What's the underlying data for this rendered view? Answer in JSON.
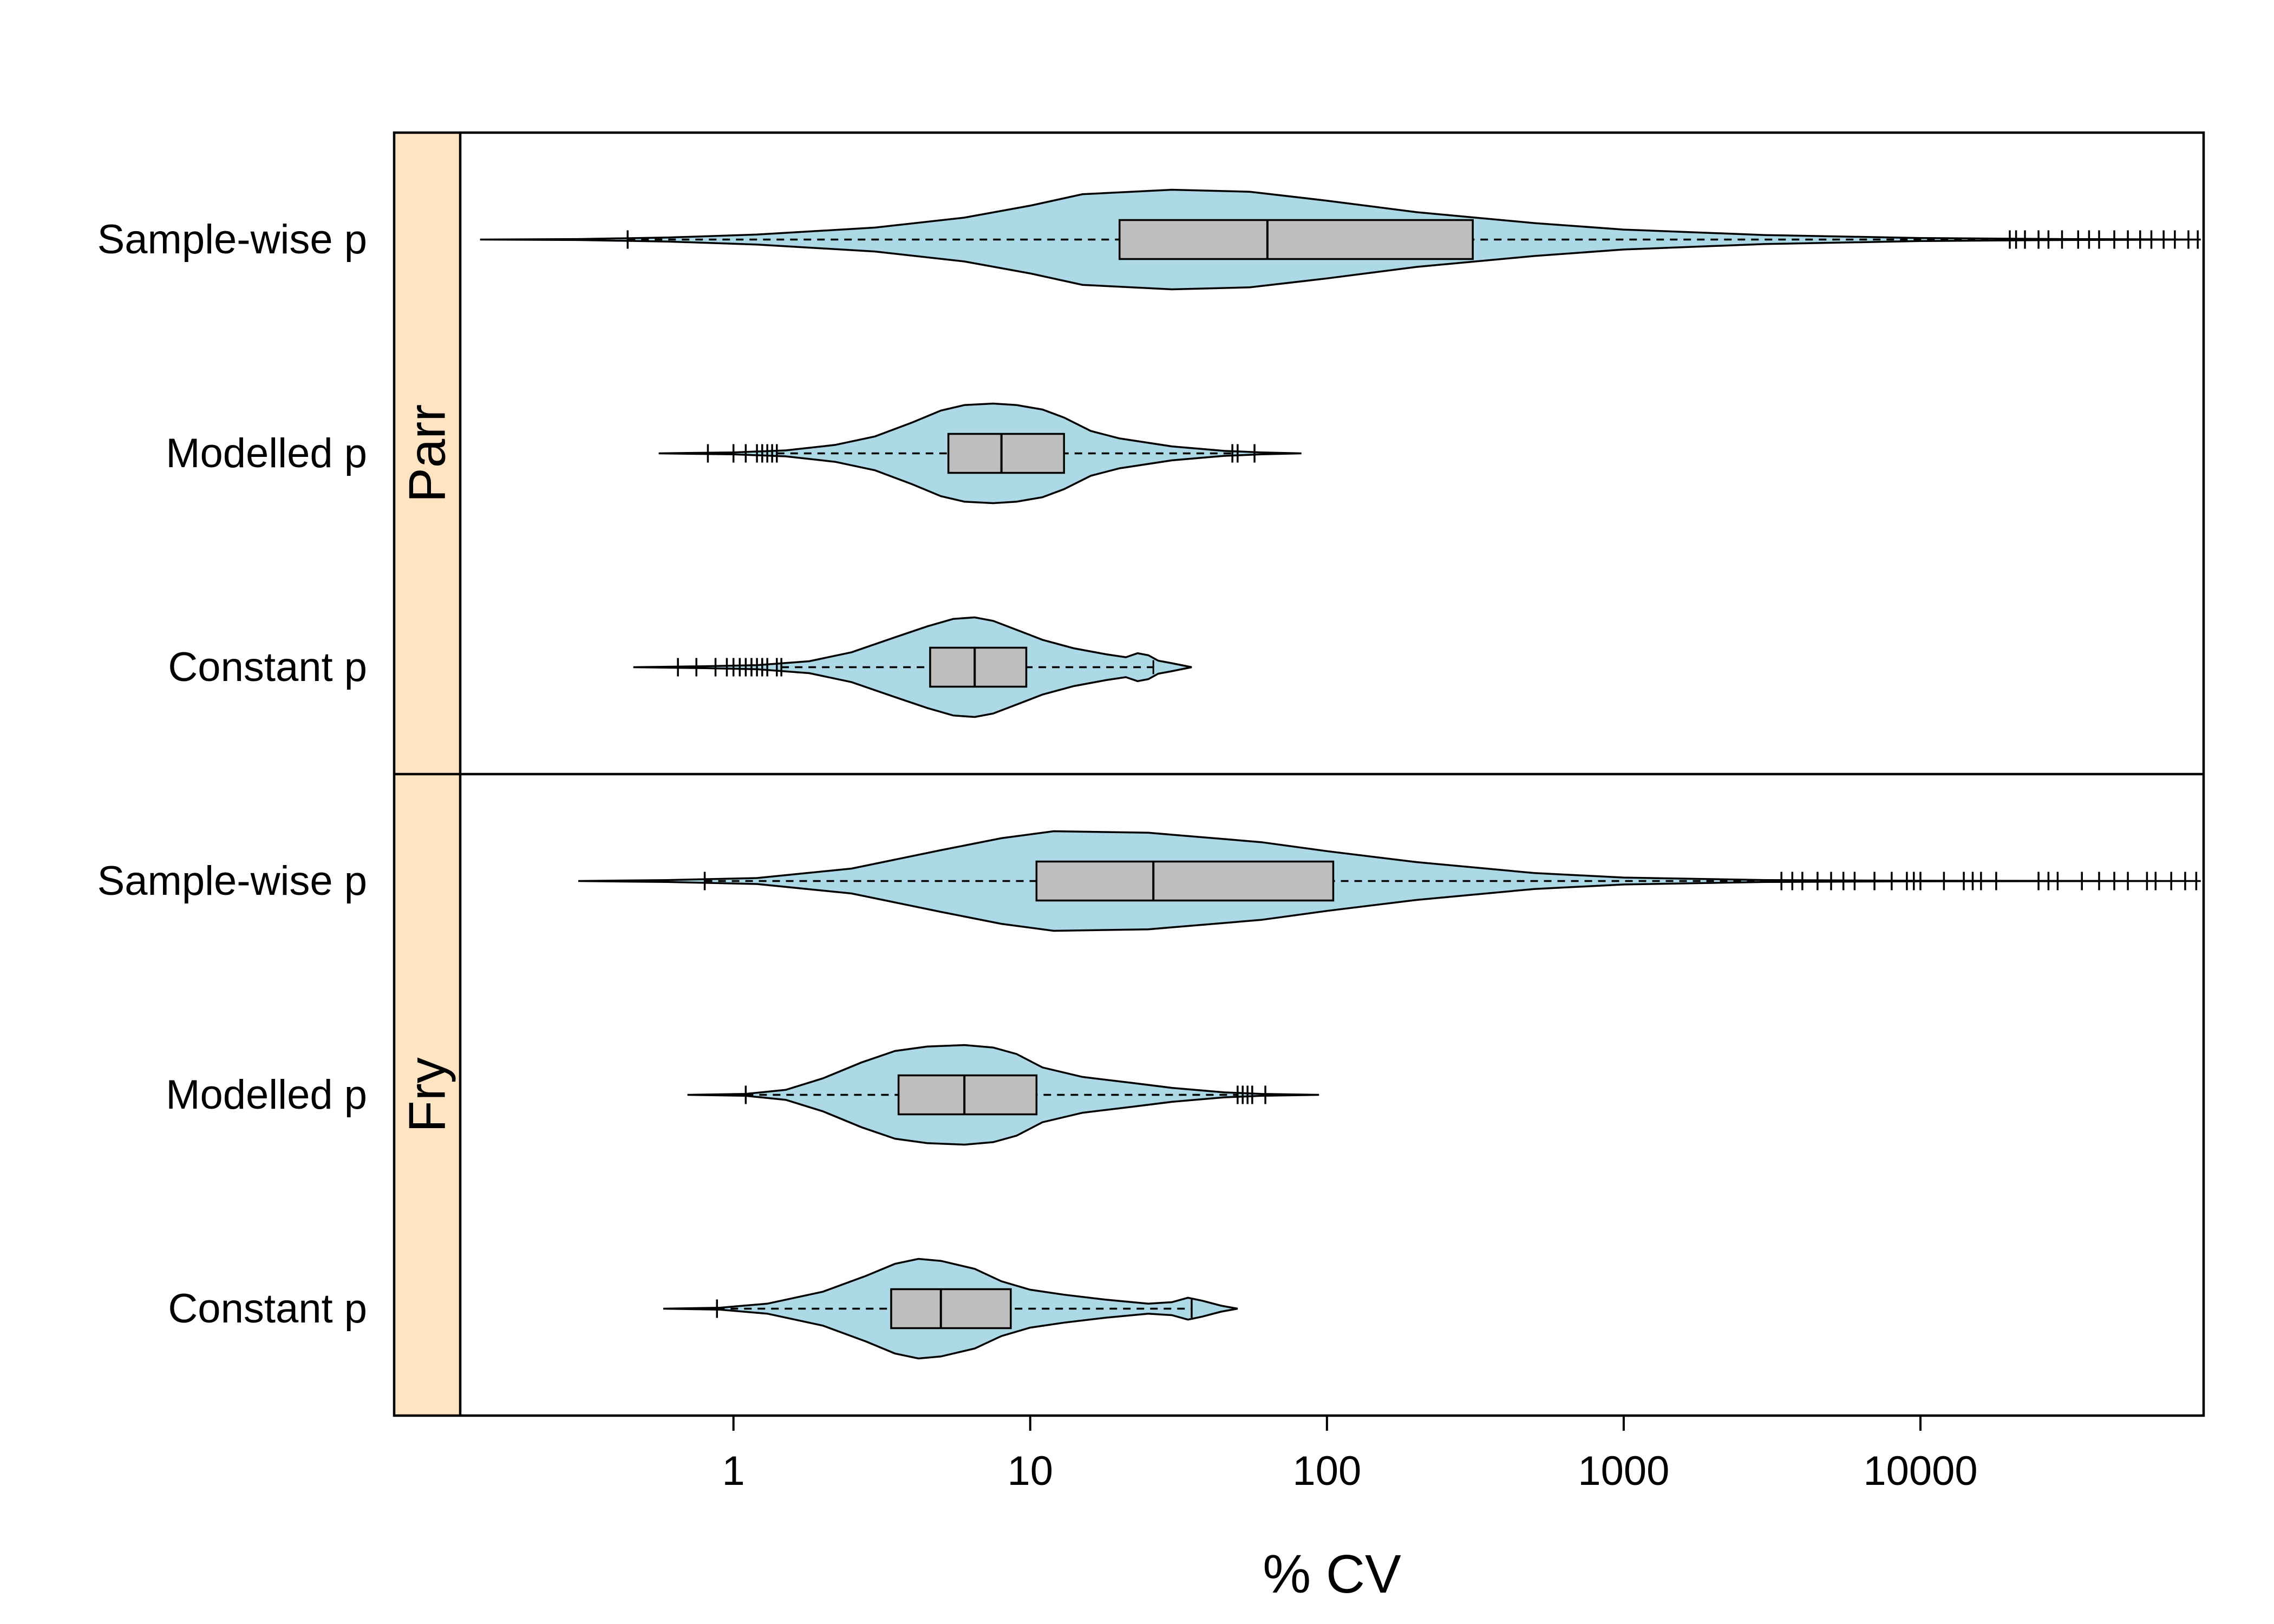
{
  "chart_data": {
    "type": "violin",
    "xlabel": "% CV",
    "x_scale": "log",
    "xlim": [
      0.12,
      90000
    ],
    "xticks": [
      1,
      10,
      100,
      1000,
      10000
    ],
    "xtick_labels": [
      "1",
      "10",
      "100",
      "1000",
      "10000"
    ],
    "categories": [
      "Sample-wise p",
      "Modelled p",
      "Constant p"
    ],
    "colors": {
      "violin_fill": "#add8e6",
      "box_fill": "#bebebe",
      "strip_fill": "#ffe4c4",
      "line": "#000000"
    },
    "panels": [
      {
        "name": "Parr",
        "groups": [
          {
            "category": "Sample-wise p",
            "whisker": [
              0.44,
              20000
            ],
            "box": [
              20,
              63,
              310
            ],
            "range": [
              0.14,
              88000
            ],
            "outliers": [
              0.44,
              20000,
              21000,
              22500,
              25000,
              27000,
              30000,
              34000,
              37000,
              40000,
              45000,
              50000,
              55000,
              60000,
              66000,
              72000,
              80000,
              86000
            ],
            "density": [
              [
                0.14,
                0.0
              ],
              [
                0.3,
                0.01
              ],
              [
                0.6,
                0.04
              ],
              [
                1.2,
                0.1
              ],
              [
                3,
                0.24
              ],
              [
                6,
                0.44
              ],
              [
                10,
                0.68
              ],
              [
                15,
                0.91
              ],
              [
                30,
                1.0
              ],
              [
                55,
                0.96
              ],
              [
                100,
                0.78
              ],
              [
                200,
                0.55
              ],
              [
                500,
                0.33
              ],
              [
                1000,
                0.2
              ],
              [
                3000,
                0.09
              ],
              [
                10000,
                0.03
              ],
              [
                30000,
                0.01
              ],
              [
                88000,
                0.0
              ]
            ]
          },
          {
            "category": "Modelled p",
            "whisker": [
              1.4,
              48
            ],
            "box": [
              5.3,
              8,
              13
            ],
            "range": [
              0.56,
              82
            ],
            "outliers": [
              0.82,
              1.0,
              1.1,
              1.2,
              1.25,
              1.3,
              1.35,
              1.4,
              48,
              50,
              57
            ],
            "density": [
              [
                0.56,
                0.0
              ],
              [
                1.0,
                0.02
              ],
              [
                1.5,
                0.06
              ],
              [
                2.2,
                0.17
              ],
              [
                3,
                0.34
              ],
              [
                4,
                0.62
              ],
              [
                5,
                0.86
              ],
              [
                6,
                0.97
              ],
              [
                7.5,
                1.0
              ],
              [
                9,
                0.97
              ],
              [
                11,
                0.88
              ],
              [
                13,
                0.72
              ],
              [
                16,
                0.45
              ],
              [
                20,
                0.3
              ],
              [
                30,
                0.14
              ],
              [
                45,
                0.05
              ],
              [
                60,
                0.02
              ],
              [
                82,
                0.0
              ]
            ]
          },
          {
            "category": "Constant p",
            "whisker": [
              1.45,
              26
            ],
            "box": [
              4.6,
              6.5,
              9.7
            ],
            "range": [
              0.46,
              35
            ],
            "outliers": [
              0.65,
              0.75,
              0.87,
              0.95,
              1.0,
              1.05,
              1.1,
              1.15,
              1.2,
              1.25,
              1.3,
              1.4,
              1.45
            ],
            "density": [
              [
                0.46,
                0.0
              ],
              [
                0.8,
                0.02
              ],
              [
                1.2,
                0.04
              ],
              [
                1.8,
                0.12
              ],
              [
                2.5,
                0.3
              ],
              [
                3.5,
                0.6
              ],
              [
                4.5,
                0.82
              ],
              [
                5.5,
                0.97
              ],
              [
                6.5,
                1.0
              ],
              [
                7.5,
                0.93
              ],
              [
                9,
                0.75
              ],
              [
                11,
                0.55
              ],
              [
                14,
                0.38
              ],
              [
                18,
                0.26
              ],
              [
                21,
                0.2
              ],
              [
                23,
                0.28
              ],
              [
                25,
                0.24
              ],
              [
                27,
                0.13
              ],
              [
                30,
                0.08
              ],
              [
                35,
                0.0
              ]
            ]
          }
        ]
      },
      {
        "name": "Fry",
        "groups": [
          {
            "category": "Sample-wise p",
            "whisker": [
              0.8,
              3400
            ],
            "box": [
              10.5,
              26,
              105
            ],
            "range": [
              0.3,
              88000
            ],
            "outliers": [
              0.8,
              3400,
              3700,
              4000,
              4500,
              5000,
              5500,
              6000,
              7000,
              8000,
              9000,
              9500,
              10000,
              12000,
              14000,
              15000,
              16000,
              18000,
              25000,
              27000,
              29000,
              35000,
              40000,
              45000,
              50000,
              58000,
              62000,
              70000,
              78000,
              85000
            ],
            "density": [
              [
                0.3,
                0.0
              ],
              [
                0.6,
                0.02
              ],
              [
                1.2,
                0.06
              ],
              [
                2.5,
                0.25
              ],
              [
                5,
                0.62
              ],
              [
                8,
                0.86
              ],
              [
                12,
                1.0
              ],
              [
                25,
                0.97
              ],
              [
                60,
                0.78
              ],
              [
                100,
                0.6
              ],
              [
                200,
                0.38
              ],
              [
                500,
                0.16
              ],
              [
                1000,
                0.07
              ],
              [
                3000,
                0.02
              ],
              [
                10000,
                0.005
              ],
              [
                88000,
                0.0
              ]
            ]
          },
          {
            "category": "Modelled p",
            "whisker": [
              1.1,
              50
            ],
            "box": [
              3.6,
              6,
              10.5
            ],
            "range": [
              0.7,
              94
            ],
            "outliers": [
              1.1,
              50,
              52,
              54,
              56,
              62
            ],
            "density": [
              [
                0.7,
                0.0
              ],
              [
                1.1,
                0.02
              ],
              [
                1.5,
                0.1
              ],
              [
                2,
                0.33
              ],
              [
                2.7,
                0.65
              ],
              [
                3.5,
                0.88
              ],
              [
                4.5,
                0.97
              ],
              [
                6,
                1.0
              ],
              [
                7.5,
                0.95
              ],
              [
                9,
                0.82
              ],
              [
                11,
                0.55
              ],
              [
                15,
                0.36
              ],
              [
                22,
                0.24
              ],
              [
                30,
                0.14
              ],
              [
                45,
                0.05
              ],
              [
                60,
                0.02
              ],
              [
                94,
                0.0
              ]
            ]
          },
          {
            "category": "Constant p",
            "whisker": [
              0.88,
              35
            ],
            "box": [
              3.4,
              5,
              8.6
            ],
            "range": [
              0.58,
              50
            ],
            "outliers": [
              0.88,
              35
            ],
            "density": [
              [
                0.58,
                0.0
              ],
              [
                0.9,
                0.02
              ],
              [
                1.3,
                0.1
              ],
              [
                2,
                0.34
              ],
              [
                2.8,
                0.66
              ],
              [
                3.5,
                0.9
              ],
              [
                4.2,
                1.0
              ],
              [
                5,
                0.96
              ],
              [
                6.5,
                0.8
              ],
              [
                8,
                0.55
              ],
              [
                10,
                0.38
              ],
              [
                13,
                0.28
              ],
              [
                18,
                0.18
              ],
              [
                25,
                0.1
              ],
              [
                30,
                0.13
              ],
              [
                34,
                0.22
              ],
              [
                38,
                0.16
              ],
              [
                44,
                0.06
              ],
              [
                50,
                0.0
              ]
            ]
          }
        ]
      }
    ]
  }
}
